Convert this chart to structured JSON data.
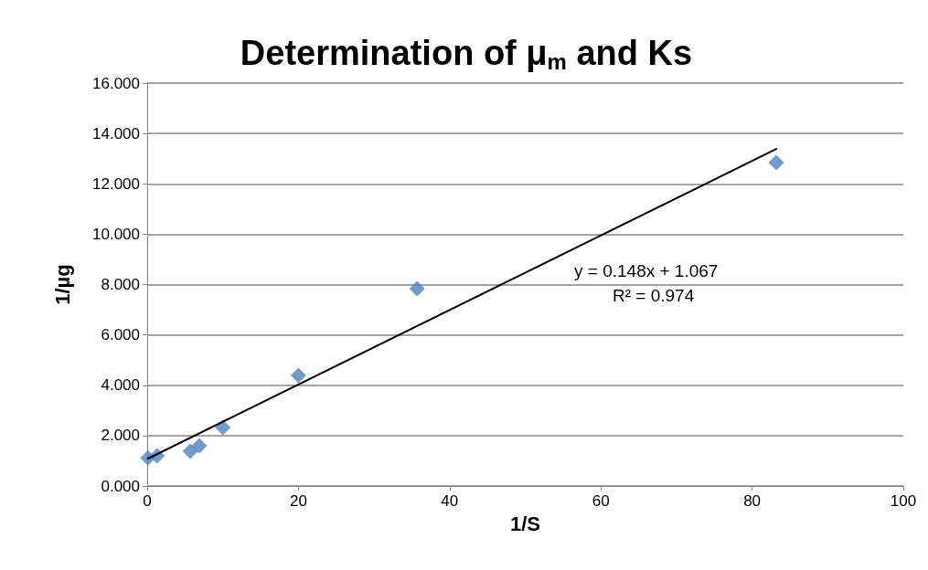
{
  "chart_data": {
    "type": "scatter",
    "title": "Determination of μ$_{m}$ and Ks",
    "xlabel": "1/S",
    "ylabel": "1/µg",
    "series": [
      {
        "color": "#4f81bd",
        "marker": "diamond",
        "x": [
          0.1,
          1.3,
          5.7,
          6.9,
          10.0,
          20.0,
          35.7,
          83.2
        ],
        "values": [
          1.12,
          1.2,
          1.38,
          1.6,
          2.32,
          4.39,
          7.84,
          12.84
        ]
      },
      {
        "type": "line",
        "color": "#000000",
        "marker": "none",
        "x": [
          0,
          83.3
        ],
        "values": [
          1.07,
          13.4
        ]
      }
    ],
    "xlim": [
      0,
      100
    ],
    "xticks": [
      0,
      20,
      40,
      60,
      80,
      100
    ],
    "ylim": [
      0,
      16
    ],
    "yticks": [
      {
        "value": 0,
        "label": "0.000"
      },
      {
        "value": 2,
        "label": "2.000"
      },
      {
        "value": 4,
        "label": "4.000"
      },
      {
        "value": 6,
        "label": "6.000"
      },
      {
        "value": 8,
        "label": "8.000"
      },
      {
        "value": 10,
        "label": "10.000"
      },
      {
        "value": 12,
        "label": "12.000"
      },
      {
        "value": 14,
        "label": "14.000"
      },
      {
        "value": 16,
        "label": "16.000"
      }
    ],
    "grid": "y",
    "annotations": [
      "y = 0.148x + 1.067",
      "R² = 0.974"
    ]
  }
}
